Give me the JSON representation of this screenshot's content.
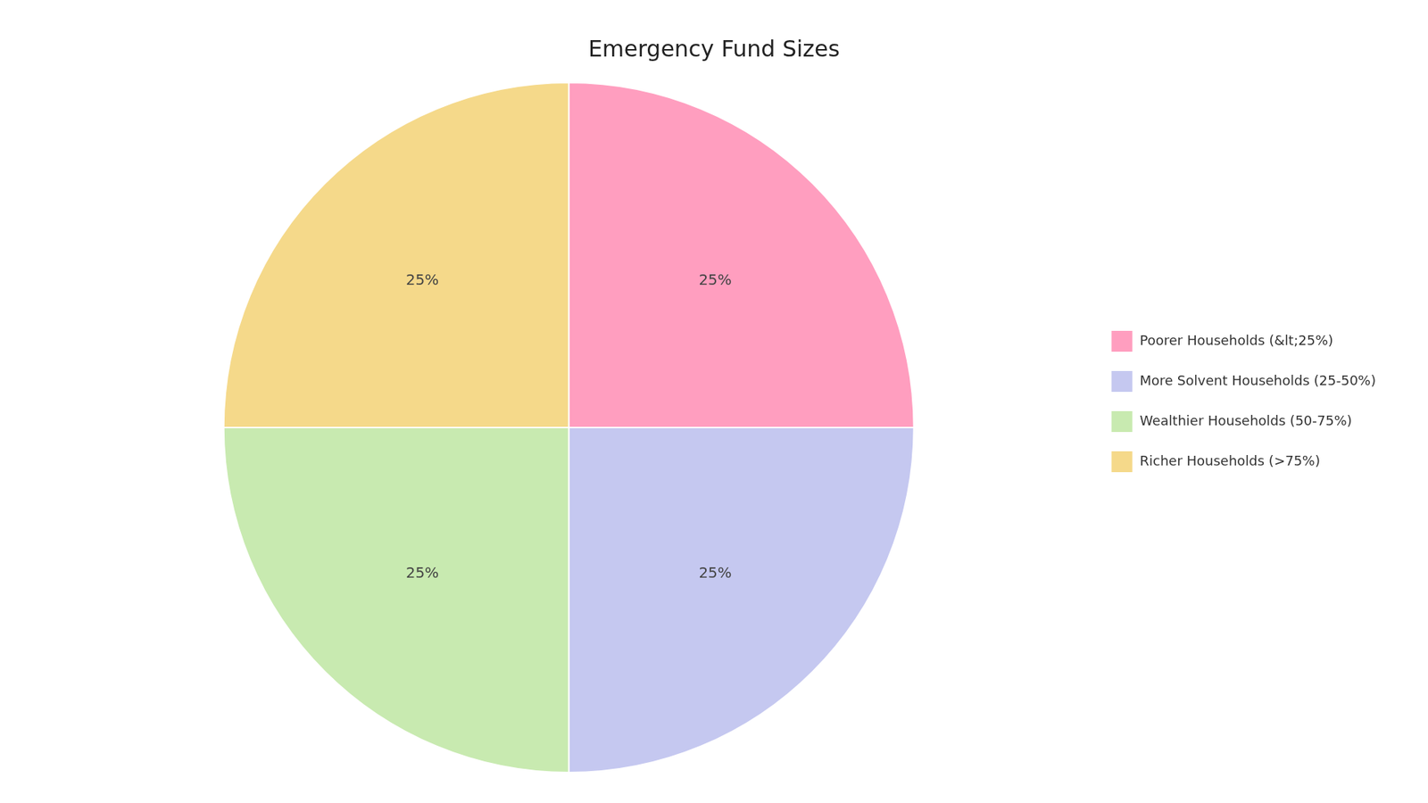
{
  "chart_data": {
    "type": "pie",
    "title": "Emergency Fund Sizes",
    "categories": [
      "Poorer Households (&lt;25%)",
      "More Solvent Households (25-50%)",
      "Wealthier Households (50-75%)",
      "Richer Households (>75%)"
    ],
    "values": [
      25,
      25,
      25,
      25
    ],
    "value_labels": [
      "25%",
      "25%",
      "25%",
      "25%"
    ],
    "colors": [
      "#FF9EBF",
      "#C5C8F0",
      "#C8EAB0",
      "#F5D98A"
    ],
    "data_labels": true,
    "legend": "right"
  }
}
